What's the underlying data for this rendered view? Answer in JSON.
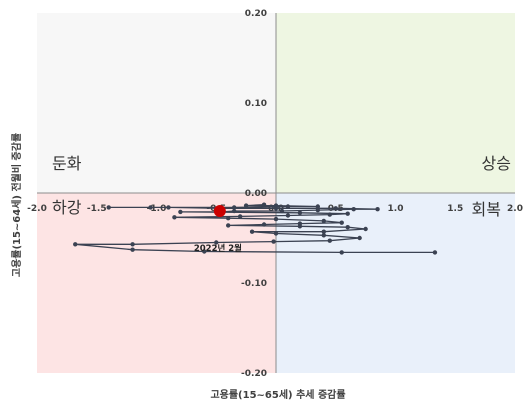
{
  "chart_data": {
    "type": "scatter",
    "title": "",
    "xlabel": "고용률(15~65세) 추세 증감률",
    "ylabel": "고용률(15~64세) 전월비 증감률",
    "xlim": [
      -2.0,
      2.0
    ],
    "ylim": [
      -0.2,
      0.2
    ],
    "x_ticks": [
      -2.0,
      -1.5,
      -1.0,
      -0.5,
      0.0,
      0.5,
      1.0,
      1.5,
      2.0
    ],
    "x_tick_labels": [
      "-2.0",
      "-1.5",
      "-1.0",
      "-0.5",
      "0.0",
      "0.5",
      "1.0",
      "1.5",
      "2.0"
    ],
    "y_ticks": [
      0.2,
      0.1,
      0.0,
      -0.1,
      -0.2
    ],
    "y_tick_labels": [
      "0.20",
      "0.10",
      "0.00",
      "-0.10",
      "-0.20"
    ],
    "quadrant_labels": {
      "top_left": "둔화",
      "top_right": "상승",
      "bottom_left": "하강",
      "bottom_right": "회복"
    },
    "quadrant_colors": {
      "top_left": "#f7f7f7",
      "top_right": "#eef6e2",
      "bottom_left": "#fde4e4",
      "bottom_right": "#e9f0fa"
    },
    "grid": false,
    "series": [
      {
        "color": "#3b4252",
        "points": [
          [
            1.33,
            -0.066
          ],
          [
            0.55,
            -0.066
          ],
          [
            -0.6,
            -0.065
          ],
          [
            -1.2,
            -0.063
          ],
          [
            -1.68,
            -0.057
          ],
          [
            -1.2,
            -0.057
          ],
          [
            -0.5,
            -0.055
          ],
          [
            -0.02,
            -0.054
          ],
          [
            0.45,
            -0.053
          ],
          [
            0.7,
            -0.05
          ],
          [
            0.4,
            -0.047
          ],
          [
            0.0,
            -0.045
          ],
          [
            -0.2,
            -0.043
          ],
          [
            0.4,
            -0.043
          ],
          [
            0.75,
            -0.04
          ],
          [
            0.6,
            -0.038
          ],
          [
            0.2,
            -0.037
          ],
          [
            -0.4,
            -0.036
          ],
          [
            -0.1,
            -0.035
          ],
          [
            0.2,
            -0.034
          ],
          [
            0.55,
            -0.033
          ],
          [
            0.4,
            -0.031
          ],
          [
            0.0,
            -0.029
          ],
          [
            -0.4,
            -0.028
          ],
          [
            -0.85,
            -0.027
          ],
          [
            -0.3,
            -0.026
          ],
          [
            0.1,
            -0.025
          ],
          [
            0.45,
            -0.024
          ],
          [
            0.6,
            -0.023
          ],
          [
            0.2,
            -0.022
          ],
          [
            -0.8,
            -0.021
          ],
          [
            -0.45,
            -0.021
          ],
          [
            -0.35,
            -0.02
          ],
          [
            0.05,
            -0.02
          ],
          [
            0.35,
            -0.019
          ],
          [
            0.65,
            -0.018
          ],
          [
            0.85,
            -0.018
          ],
          [
            0.5,
            -0.017
          ],
          [
            0.0,
            -0.017
          ],
          [
            -0.45,
            -0.017
          ],
          [
            -0.9,
            -0.016
          ],
          [
            -1.4,
            -0.016
          ],
          [
            -1.05,
            -0.016
          ],
          [
            -0.35,
            -0.016
          ],
          [
            0.1,
            -0.015
          ],
          [
            0.35,
            -0.015
          ],
          [
            0.0,
            -0.014
          ],
          [
            -0.25,
            -0.014
          ],
          [
            -0.1,
            -0.013
          ]
        ]
      }
    ],
    "highlight": {
      "x": -0.47,
      "y": -0.02,
      "label": "2022년 2월",
      "color": "#cc0000"
    }
  }
}
